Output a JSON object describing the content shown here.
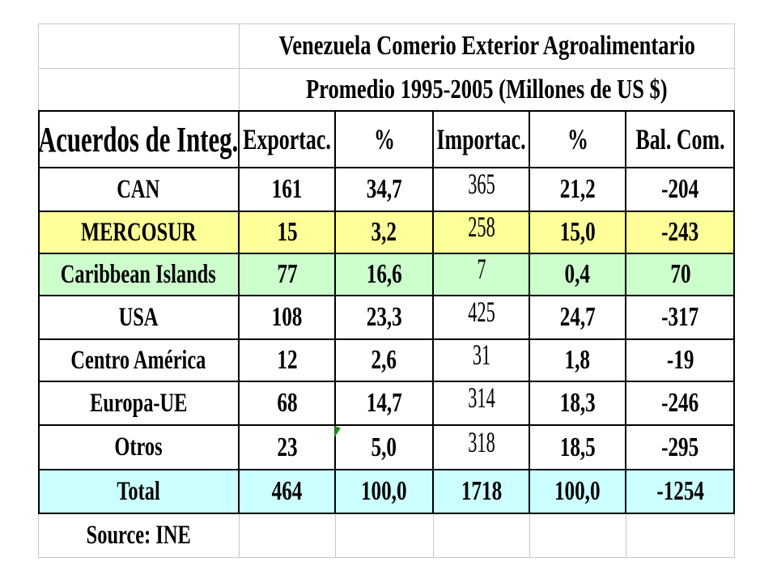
{
  "table": {
    "title": "Venezuela Comerio Exterior Agroalimentario",
    "subtitle": "Promedio 1995-2005 (Millones de US  $)",
    "headers": [
      "Acuerdos de Integ.",
      "Exportac.",
      "%",
      "Importac.",
      "%",
      "Bal. Com."
    ],
    "rows": [
      {
        "label": "CAN",
        "cells": [
          "161",
          "34,7",
          "365",
          "21,2",
          "-204"
        ]
      },
      {
        "label": "MERCOSUR",
        "cells": [
          "15",
          "3,2",
          "258",
          "15,0",
          "-243"
        ]
      },
      {
        "label": "Caribbean Islands",
        "cells": [
          "77",
          "16,6",
          "7",
          "0,4",
          "70"
        ]
      },
      {
        "label": "USA",
        "cells": [
          "108",
          "23,3",
          "425",
          "24,7",
          "-317"
        ]
      },
      {
        "label": "Centro América",
        "cells": [
          "12",
          "2,6",
          "31",
          "1,8",
          "-19"
        ]
      },
      {
        "label": "Europa-UE",
        "cells": [
          "68",
          "14,7",
          "314",
          "18,3",
          "-246"
        ]
      },
      {
        "label": "Otros",
        "cells": [
          "23",
          "5,0",
          "318",
          "18,5",
          "-295"
        ]
      },
      {
        "label": "Total",
        "cells": [
          "464",
          "100,0",
          "1718",
          "100,0",
          "-1254"
        ]
      }
    ],
    "source": "Source: INE"
  },
  "colors": {
    "mercosur_row": "#ffff99",
    "caribbean_row": "#ccffcc",
    "total_row": "#ccffff",
    "white": "#ffffff",
    "thin_grid": "#c8c8c8",
    "thick_border": "#000000"
  }
}
